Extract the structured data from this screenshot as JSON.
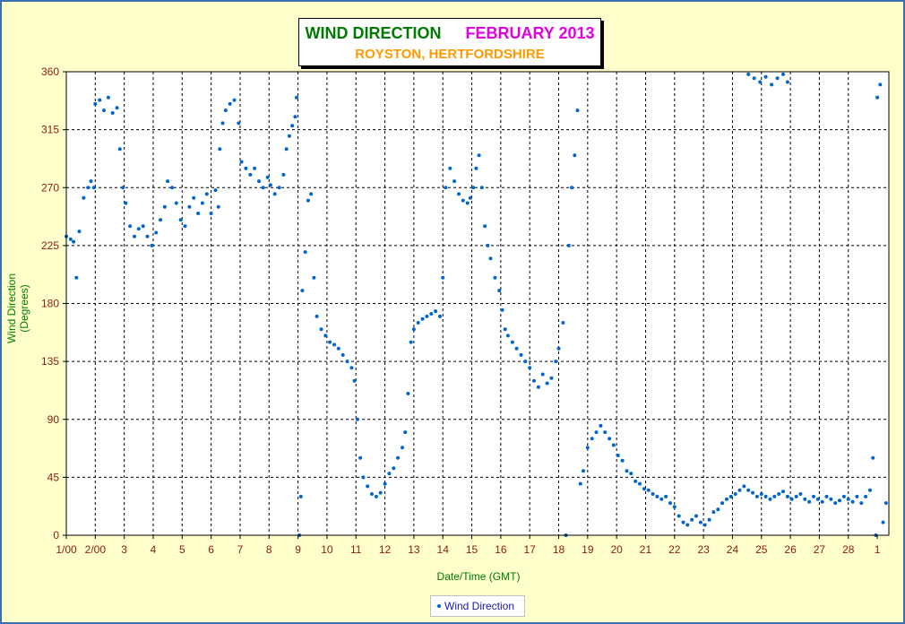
{
  "title": {
    "main": "WIND DIRECTION",
    "month": "FEBRUARY 2013",
    "location": "ROYSTON, HERTFORDSHIRE"
  },
  "colors": {
    "background": "#ffffcc",
    "marker": "#0066cc",
    "frame": "#3a6fb0",
    "tick_text": "#8b1a1a",
    "axis_title": "#007a00"
  },
  "chart_data": {
    "type": "scatter",
    "xlabel": "Date/Time (GMT)",
    "ylabel": "Wind Direction (Degrees)",
    "ylim": [
      0,
      360
    ],
    "xlim": [
      0,
      28.4
    ],
    "grid": true,
    "legend_position": "bottom",
    "yticks": [
      "0",
      "45",
      "90",
      "135",
      "180",
      "225",
      "270",
      "315",
      "360"
    ],
    "xtick_labels": [
      "1/00",
      "2/00",
      "3",
      "4",
      "5",
      "6",
      "7",
      "8",
      "9",
      "10",
      "11",
      "12",
      "13",
      "14",
      "15",
      "16",
      "17",
      "18",
      "19",
      "20",
      "21",
      "22",
      "23",
      "24",
      "25",
      "26",
      "27",
      "28",
      "1"
    ],
    "series": [
      {
        "name": "Wind Direction",
        "x_unit": "days since start of February",
        "points": [
          [
            0.0,
            232
          ],
          [
            0.15,
            230
          ],
          [
            0.25,
            228
          ],
          [
            0.35,
            200
          ],
          [
            0.45,
            236
          ],
          [
            0.6,
            262
          ],
          [
            0.75,
            270
          ],
          [
            0.85,
            275
          ],
          [
            0.95,
            270
          ],
          [
            1.0,
            335
          ],
          [
            1.15,
            338
          ],
          [
            1.3,
            330
          ],
          [
            1.45,
            340
          ],
          [
            1.6,
            328
          ],
          [
            1.75,
            332
          ],
          [
            1.85,
            300
          ],
          [
            1.95,
            270
          ],
          [
            2.05,
            258
          ],
          [
            2.2,
            240
          ],
          [
            2.35,
            232
          ],
          [
            2.5,
            238
          ],
          [
            2.65,
            240
          ],
          [
            2.8,
            232
          ],
          [
            2.95,
            225
          ],
          [
            3.1,
            235
          ],
          [
            3.25,
            245
          ],
          [
            3.4,
            255
          ],
          [
            3.5,
            275
          ],
          [
            3.65,
            270
          ],
          [
            3.8,
            258
          ],
          [
            3.95,
            245
          ],
          [
            4.1,
            240
          ],
          [
            4.25,
            255
          ],
          [
            4.4,
            262
          ],
          [
            4.55,
            250
          ],
          [
            4.7,
            258
          ],
          [
            4.85,
            265
          ],
          [
            5.0,
            250
          ],
          [
            5.15,
            268
          ],
          [
            5.25,
            255
          ],
          [
            5.3,
            300
          ],
          [
            5.4,
            320
          ],
          [
            5.5,
            330
          ],
          [
            5.65,
            335
          ],
          [
            5.8,
            338
          ],
          [
            5.95,
            320
          ],
          [
            6.05,
            290
          ],
          [
            6.2,
            285
          ],
          [
            6.35,
            280
          ],
          [
            6.5,
            285
          ],
          [
            6.65,
            275
          ],
          [
            6.8,
            270
          ],
          [
            6.95,
            278
          ],
          [
            7.05,
            272
          ],
          [
            7.2,
            265
          ],
          [
            7.35,
            270
          ],
          [
            7.5,
            280
          ],
          [
            7.6,
            300
          ],
          [
            7.7,
            310
          ],
          [
            7.8,
            318
          ],
          [
            7.9,
            325
          ],
          [
            7.95,
            340
          ],
          [
            8.05,
            0
          ],
          [
            8.1,
            30
          ],
          [
            8.15,
            190
          ],
          [
            8.25,
            220
          ],
          [
            8.35,
            260
          ],
          [
            8.45,
            265
          ],
          [
            8.55,
            200
          ],
          [
            8.65,
            170
          ],
          [
            8.8,
            160
          ],
          [
            8.95,
            155
          ],
          [
            9.1,
            150
          ],
          [
            9.25,
            148
          ],
          [
            9.4,
            145
          ],
          [
            9.55,
            140
          ],
          [
            9.7,
            135
          ],
          [
            9.85,
            130
          ],
          [
            9.95,
            120
          ],
          [
            10.05,
            90
          ],
          [
            10.15,
            60
          ],
          [
            10.25,
            45
          ],
          [
            10.4,
            38
          ],
          [
            10.55,
            32
          ],
          [
            10.7,
            30
          ],
          [
            10.85,
            33
          ],
          [
            11.0,
            40
          ],
          [
            11.15,
            48
          ],
          [
            11.3,
            52
          ],
          [
            11.45,
            60
          ],
          [
            11.6,
            68
          ],
          [
            11.7,
            80
          ],
          [
            11.8,
            110
          ],
          [
            11.9,
            150
          ],
          [
            12.0,
            160
          ],
          [
            12.15,
            165
          ],
          [
            12.3,
            168
          ],
          [
            12.45,
            170
          ],
          [
            12.6,
            172
          ],
          [
            12.75,
            174
          ],
          [
            12.9,
            170
          ],
          [
            13.0,
            200
          ],
          [
            13.1,
            270
          ],
          [
            13.25,
            285
          ],
          [
            13.4,
            275
          ],
          [
            13.55,
            265
          ],
          [
            13.7,
            260
          ],
          [
            13.85,
            258
          ],
          [
            13.95,
            262
          ],
          [
            14.05,
            270
          ],
          [
            14.15,
            285
          ],
          [
            14.25,
            295
          ],
          [
            14.35,
            270
          ],
          [
            14.45,
            240
          ],
          [
            14.55,
            225
          ],
          [
            14.65,
            215
          ],
          [
            14.8,
            200
          ],
          [
            14.95,
            190
          ],
          [
            15.05,
            175
          ],
          [
            15.15,
            160
          ],
          [
            15.25,
            155
          ],
          [
            15.4,
            150
          ],
          [
            15.55,
            145
          ],
          [
            15.7,
            140
          ],
          [
            15.85,
            135
          ],
          [
            16.0,
            130
          ],
          [
            16.15,
            120
          ],
          [
            16.3,
            115
          ],
          [
            16.45,
            125
          ],
          [
            16.6,
            118
          ],
          [
            16.75,
            122
          ],
          [
            16.9,
            135
          ],
          [
            17.0,
            145
          ],
          [
            17.15,
            165
          ],
          [
            17.25,
            0
          ],
          [
            17.35,
            225
          ],
          [
            17.45,
            270
          ],
          [
            17.55,
            295
          ],
          [
            17.65,
            330
          ],
          [
            17.75,
            40
          ],
          [
            17.85,
            50
          ],
          [
            18.0,
            68
          ],
          [
            18.15,
            75
          ],
          [
            18.3,
            80
          ],
          [
            18.45,
            85
          ],
          [
            18.6,
            80
          ],
          [
            18.75,
            75
          ],
          [
            18.9,
            70
          ],
          [
            19.05,
            62
          ],
          [
            19.2,
            58
          ],
          [
            19.35,
            50
          ],
          [
            19.5,
            48
          ],
          [
            19.65,
            42
          ],
          [
            19.8,
            40
          ],
          [
            19.95,
            36
          ],
          [
            20.1,
            35
          ],
          [
            20.25,
            32
          ],
          [
            20.4,
            30
          ],
          [
            20.55,
            28
          ],
          [
            20.7,
            30
          ],
          [
            20.85,
            25
          ],
          [
            21.0,
            22
          ],
          [
            21.15,
            15
          ],
          [
            21.3,
            10
          ],
          [
            21.45,
            8
          ],
          [
            21.6,
            12
          ],
          [
            21.75,
            15
          ],
          [
            21.9,
            10
          ],
          [
            22.05,
            8
          ],
          [
            22.2,
            12
          ],
          [
            22.35,
            18
          ],
          [
            22.5,
            20
          ],
          [
            22.65,
            25
          ],
          [
            22.8,
            28
          ],
          [
            22.95,
            30
          ],
          [
            23.1,
            32
          ],
          [
            23.25,
            35
          ],
          [
            23.4,
            38
          ],
          [
            23.55,
            35
          ],
          [
            23.7,
            33
          ],
          [
            23.85,
            30
          ],
          [
            24.0,
            32
          ],
          [
            24.15,
            30
          ],
          [
            24.3,
            28
          ],
          [
            24.45,
            30
          ],
          [
            24.6,
            32
          ],
          [
            24.75,
            34
          ],
          [
            24.9,
            30
          ],
          [
            25.05,
            28
          ],
          [
            25.2,
            30
          ],
          [
            25.35,
            32
          ],
          [
            25.5,
            28
          ],
          [
            25.65,
            26
          ],
          [
            25.8,
            30
          ],
          [
            25.95,
            28
          ],
          [
            26.1,
            26
          ],
          [
            26.25,
            30
          ],
          [
            26.4,
            28
          ],
          [
            26.55,
            25
          ],
          [
            26.7,
            27
          ],
          [
            26.85,
            30
          ],
          [
            27.0,
            28
          ],
          [
            27.15,
            26
          ],
          [
            27.3,
            30
          ],
          [
            27.45,
            25
          ],
          [
            27.6,
            30
          ],
          [
            27.75,
            35
          ],
          [
            27.85,
            60
          ],
          [
            27.95,
            0
          ],
          [
            28.0,
            340
          ],
          [
            28.1,
            350
          ],
          [
            28.2,
            10
          ],
          [
            28.3,
            25
          ],
          [
            23.55,
            358
          ],
          [
            23.75,
            355
          ],
          [
            23.95,
            352
          ],
          [
            24.15,
            356
          ],
          [
            24.35,
            350
          ],
          [
            24.55,
            355
          ],
          [
            24.75,
            358
          ],
          [
            24.9,
            352
          ]
        ]
      }
    ]
  },
  "legend": {
    "label": "Wind Direction"
  }
}
